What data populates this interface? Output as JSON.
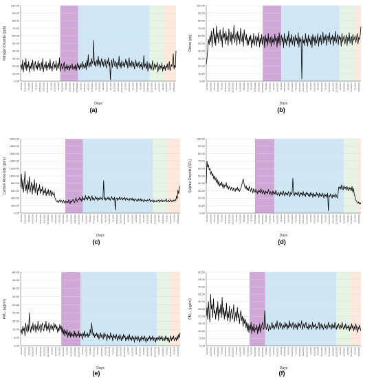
{
  "chart_data": [
    {
      "type": "line",
      "panel_label": "(a)",
      "ylabel": "Nitrogen Dioxide (ppb)",
      "xlabel": "Days",
      "ylim": [
        0,
        100
      ],
      "yticks": [
        "0.00",
        "10.00",
        "20.00",
        "30.00",
        "40.00",
        "50.00",
        "60.00",
        "70.00",
        "80.00",
        "90.00",
        "100.00"
      ],
      "period_colors": [
        "#d0a8d8",
        "#cfe6f5",
        "#e6f4e6",
        "#fde9dc"
      ],
      "values": [
        18,
        22,
        15,
        28,
        12,
        20,
        25,
        16,
        30,
        14,
        22,
        18,
        26,
        12,
        20,
        17,
        24,
        15,
        28,
        19,
        13,
        22,
        26,
        17,
        21,
        15,
        27,
        18,
        23,
        14,
        20,
        25,
        16,
        30,
        12,
        19,
        22,
        17,
        26,
        14,
        21,
        18,
        24,
        15,
        29,
        17,
        20,
        13,
        23,
        26,
        16,
        22,
        18,
        27,
        14,
        20,
        24,
        17,
        31,
        13,
        19,
        23,
        18,
        16,
        21,
        25,
        13,
        19,
        17,
        22,
        15,
        20,
        18,
        14,
        21,
        17,
        19,
        23,
        15,
        18,
        20,
        16,
        22,
        14,
        19,
        24,
        17,
        21,
        15,
        23,
        18,
        20,
        26,
        16,
        22,
        19,
        17,
        24,
        15,
        28,
        20,
        35,
        18,
        22,
        25,
        19,
        30,
        23,
        27,
        54,
        21,
        26,
        19,
        24,
        28,
        20,
        33,
        22,
        27,
        18,
        25,
        30,
        21,
        26,
        19,
        24,
        29,
        22,
        17,
        27,
        23,
        31,
        20,
        25,
        2,
        21,
        28,
        18,
        24,
        30,
        22,
        19,
        26,
        23,
        16,
        25,
        21,
        33,
        19,
        24,
        17,
        27,
        22,
        20,
        25,
        18,
        23,
        29,
        21,
        26,
        17,
        22,
        31,
        20,
        24,
        18,
        27,
        23,
        19,
        25,
        16,
        21,
        28,
        20,
        24,
        18,
        23,
        26,
        17,
        22,
        19,
        25,
        15,
        21,
        34,
        18,
        23,
        20,
        16,
        26,
        13,
        19,
        24,
        17,
        22,
        15,
        20,
        27,
        14,
        18,
        23,
        16,
        21,
        19,
        25,
        12,
        18,
        22,
        15,
        20,
        17,
        24,
        13,
        19,
        16,
        21,
        14,
        20,
        18,
        23,
        15,
        19,
        26,
        14,
        17,
        22,
        19,
        25,
        36,
        16,
        21,
        18,
        40
      ]
    },
    {
      "type": "line",
      "panel_label": "(b)",
      "ylabel": "Ozone (pp)",
      "xlabel": "Days",
      "ylim": [
        0,
        100
      ],
      "yticks": [
        "0.00",
        "10.00",
        "20.00",
        "30.00",
        "40.00",
        "50.00",
        "60.00",
        "70.00",
        "80.00",
        "90.00",
        "100.00"
      ],
      "period_colors": [
        "#d0a8d8",
        "#cfe6f5",
        "#e6f4e6",
        "#fde9dc"
      ],
      "values": [
        22,
        30,
        42,
        55,
        48,
        60,
        52,
        66,
        45,
        58,
        70,
        50,
        62,
        47,
        73,
        56,
        64,
        50,
        59,
        68,
        53,
        61,
        45,
        71,
        57,
        63,
        49,
        66,
        54,
        60,
        47,
        69,
        58,
        52,
        65,
        48,
        62,
        56,
        74,
        51,
        59,
        64,
        47,
        66,
        55,
        61,
        49,
        70,
        57,
        52,
        63,
        46,
        68,
        58,
        54,
        62,
        47,
        57,
        48,
        59,
        53,
        61,
        44,
        56,
        50,
        63,
        47,
        55,
        60,
        46,
        58,
        52,
        64,
        45,
        57,
        50,
        62,
        48,
        55,
        59,
        44,
        61,
        52,
        57,
        47,
        63,
        50,
        54,
        58,
        46,
        60,
        51,
        56,
        48,
        62,
        53,
        57,
        45,
        59,
        50,
        64,
        47,
        55,
        61,
        52,
        58,
        44,
        63,
        50,
        56,
        47,
        60,
        53,
        66,
        45,
        57,
        51,
        62,
        48,
        55,
        59,
        46,
        61,
        53,
        57,
        49,
        64,
        45,
        58,
        52,
        56,
        3,
        60,
        50,
        55,
        47,
        63,
        51,
        57,
        46,
        61,
        52,
        56,
        48,
        59,
        44,
        62,
        53,
        58,
        47,
        60,
        50,
        55,
        63,
        46,
        58,
        52,
        61,
        48,
        56,
        65,
        50,
        59,
        54,
        62,
        47,
        57,
        60,
        52,
        64,
        49,
        58,
        55,
        61,
        47,
        59,
        53,
        66,
        50,
        57,
        62,
        48,
        60,
        55,
        58,
        46,
        63,
        52,
        57,
        60,
        49,
        55,
        61,
        47,
        58,
        53,
        64,
        50,
        57,
        59,
        48,
        62,
        54,
        56,
        60,
        51,
        57,
        63,
        49,
        58,
        55,
        61,
        72
      ]
    },
    {
      "type": "line",
      "panel_label": "(c)",
      "ylabel": "Carbon Monoxide (ppm)",
      "xlabel": "Days",
      "ylim": [
        0,
        2000
      ],
      "yticks": [
        "0.00",
        "200.00",
        "400.00",
        "600.00",
        "800.00",
        "1000.00",
        "1200.00",
        "1400.00",
        "1600.00",
        "1800.00",
        "2000.00"
      ],
      "period_colors": [
        "#d0a8d8",
        "#cfe6f5",
        "#e6f4e6",
        "#fde9dc"
      ],
      "values": [
        700,
        1050,
        650,
        900,
        560,
        820,
        1120,
        600,
        760,
        520,
        880,
        640,
        980,
        560,
        700,
        830,
        500,
        760,
        620,
        900,
        540,
        720,
        810,
        480,
        680,
        600,
        770,
        520,
        650,
        590,
        720,
        480,
        610,
        540,
        680,
        460,
        580,
        520,
        640,
        470,
        560,
        610,
        450,
        590,
        520,
        480,
        560,
        420,
        360,
        320,
        300,
        340,
        280,
        320,
        360,
        290,
        340,
        310,
        270,
        350,
        300,
        260,
        330,
        290,
        310,
        280,
        360,
        300,
        250,
        330,
        290,
        340,
        370,
        310,
        280,
        350,
        410,
        330,
        300,
        380,
        360,
        420,
        340,
        390,
        310,
        450,
        360,
        400,
        340,
        480,
        380,
        420,
        350,
        460,
        390,
        430,
        330,
        400,
        470,
        360,
        410,
        340,
        390,
        450,
        370,
        420,
        330,
        400,
        360,
        440,
        380,
        410,
        350,
        390,
        870,
        360,
        420,
        340,
        400,
        380,
        430,
        360,
        410,
        340,
        390,
        450,
        370,
        400,
        350,
        430,
        80,
        380,
        410,
        340,
        400,
        370,
        440,
        360,
        390,
        420,
        350,
        400,
        370,
        430,
        340,
        390,
        410,
        360,
        380,
        330,
        400,
        370,
        350,
        410,
        340,
        380,
        320,
        390,
        360,
        340,
        370,
        310,
        380,
        350,
        330,
        390,
        320,
        360,
        340,
        300,
        370,
        330,
        350,
        310,
        360,
        320,
        340,
        380,
        300,
        350,
        330,
        310,
        360,
        290,
        340,
        320,
        300,
        350,
        310,
        330,
        360,
        290,
        340,
        320,
        370,
        300,
        330,
        350,
        310,
        340,
        380,
        300,
        320,
        350,
        300,
        330,
        360,
        310,
        340,
        300,
        350,
        320,
        360,
        340,
        460,
        380,
        620,
        520,
        680,
        720
      ]
    },
    {
      "type": "line",
      "panel_label": "(d)",
      "ylabel": "Sulphur Dioxide (SO₂)",
      "xlabel": "Days",
      "ylim": [
        0,
        100
      ],
      "yticks": [
        "0.00",
        "10.00",
        "20.00",
        "30.00",
        "40.00",
        "50.00",
        "60.00",
        "70.00",
        "80.00",
        "90.00",
        "100.00"
      ],
      "period_colors": [
        "#d0a8d8",
        "#cfe6f5",
        "#e6f4e6",
        "#fde9dc"
      ],
      "values": [
        40,
        70,
        62,
        65,
        58,
        60,
        52,
        56,
        50,
        53,
        46,
        50,
        44,
        48,
        41,
        45,
        38,
        43,
        36,
        40,
        37,
        42,
        35,
        39,
        33,
        38,
        36,
        41,
        34,
        37,
        32,
        36,
        34,
        31,
        35,
        33,
        30,
        34,
        32,
        29,
        33,
        31,
        35,
        30,
        33,
        29,
        32,
        34,
        38,
        42,
        46,
        40,
        35,
        33,
        37,
        31,
        34,
        30,
        36,
        32,
        29,
        34,
        31,
        27,
        33,
        30,
        28,
        32,
        29,
        26,
        31,
        28,
        30,
        27,
        33,
        29,
        26,
        31,
        28,
        25,
        30,
        27,
        29,
        26,
        32,
        28,
        25,
        29,
        27,
        24,
        30,
        26,
        28,
        25,
        31,
        27,
        24,
        28,
        26,
        23,
        29,
        25,
        27,
        24,
        30,
        26,
        23,
        28,
        25,
        27,
        24,
        29,
        26,
        22,
        28,
        25,
        27,
        47,
        26,
        23,
        28,
        25,
        27,
        24,
        29,
        26,
        22,
        28,
        25,
        27,
        23,
        29,
        24,
        26,
        22,
        28,
        25,
        27,
        23,
        26,
        22,
        28,
        24,
        26,
        21,
        27,
        23,
        25,
        22,
        28,
        24,
        26,
        21,
        27,
        23,
        25,
        22,
        27,
        24,
        20,
        26,
        23,
        25,
        21,
        27,
        3,
        24,
        22,
        26,
        23,
        20,
        25,
        22,
        24,
        21,
        26,
        23,
        20,
        25,
        35,
        33,
        36,
        32,
        38,
        34,
        31,
        37,
        33,
        35,
        31,
        36,
        33,
        30,
        35,
        32,
        34,
        30,
        36,
        28,
        33,
        25,
        22,
        18,
        16,
        14,
        13,
        15,
        12,
        14,
        12
      ]
    },
    {
      "type": "line",
      "panel_label": "(e)",
      "ylabel": "PM₁₀ (µg/m³)",
      "xlabel": "Days",
      "ylim": [
        0,
        45
      ],
      "yticks": [
        "0.00",
        "5.00",
        "10.00",
        "15.00",
        "20.00",
        "25.00",
        "30.00",
        "35.00",
        "40.00",
        "45.00"
      ],
      "period_colors": [
        "#d0a8d8",
        "#cfe6f5",
        "#e6f4e6",
        "#fde9dc"
      ],
      "values": [
        8,
        10,
        7,
        12,
        9,
        11,
        6,
        14,
        10,
        8,
        13,
        9,
        20,
        11,
        8,
        12,
        10,
        14,
        9,
        11,
        13,
        8,
        12,
        10,
        15,
        9,
        11,
        13,
        8,
        12,
        14,
        10,
        9,
        13,
        11,
        15,
        9,
        12,
        10,
        14,
        8,
        11,
        13,
        10,
        12,
        9,
        14,
        11,
        13,
        10,
        12,
        8,
        11,
        9,
        13,
        10,
        12,
        8,
        11,
        7,
        10,
        6,
        9,
        7,
        10,
        5,
        8,
        6,
        9,
        5,
        8,
        6,
        7,
        5,
        9,
        6,
        8,
        5,
        7,
        6,
        9,
        5,
        8,
        6,
        7,
        4,
        8,
        6,
        9,
        5,
        7,
        6,
        8,
        5,
        7,
        6,
        10,
        7,
        14,
        9,
        6,
        8,
        5,
        7,
        6,
        8,
        5,
        7,
        4,
        6,
        8,
        5,
        7,
        6,
        4,
        8,
        5,
        7,
        6,
        3,
        7,
        5,
        6,
        4,
        8,
        5,
        6,
        3,
        7,
        5,
        6,
        4,
        7,
        5,
        3,
        6,
        4,
        7,
        5,
        3,
        6,
        4,
        7,
        5,
        6,
        3,
        5,
        4,
        6,
        3,
        7,
        4,
        5,
        3,
        6,
        4,
        5,
        2,
        6,
        4,
        5,
        3,
        6,
        4,
        2,
        5,
        3,
        6,
        4,
        5,
        3,
        6,
        4,
        2,
        5,
        3,
        5,
        4,
        6,
        3,
        5,
        4,
        6,
        3,
        5,
        4,
        2,
        5,
        3,
        5,
        4,
        6,
        3,
        5,
        4,
        6,
        3,
        4,
        5,
        3,
        6,
        4,
        5,
        3,
        5,
        2,
        4,
        6,
        3,
        5,
        4,
        6,
        3,
        4,
        5,
        3,
        6,
        4,
        7,
        5,
        8
      ]
    },
    {
      "type": "line",
      "panel_label": "(f)",
      "ylabel": "PM₂.₅ (µg/m³)",
      "xlabel": "Days",
      "ylim": [
        0,
        50
      ],
      "yticks": [
        "0.00",
        "5.00",
        "10.00",
        "15.00",
        "20.00",
        "25.00",
        "30.00",
        "35.00",
        "40.00",
        "45.00",
        "50.00"
      ],
      "period_colors": [
        "#d0a8d8",
        "#cfe6f5",
        "#e6f4e6",
        "#fde9dc"
      ],
      "values": [
        20,
        26,
        18,
        30,
        22,
        16,
        35,
        25,
        28,
        19,
        32,
        22,
        24,
        18,
        26,
        21,
        30,
        17,
        25,
        22,
        28,
        19,
        33,
        21,
        26,
        18,
        24,
        20,
        29,
        17,
        23,
        19,
        27,
        16,
        22,
        25,
        18,
        21,
        28,
        16,
        20,
        23,
        17,
        26,
        19,
        22,
        15,
        21,
        24,
        17,
        20,
        13,
        19,
        15,
        18,
        12,
        16,
        10,
        15,
        9,
        14,
        11,
        16,
        8,
        13,
        10,
        15,
        9,
        12,
        11,
        14,
        8,
        13,
        10,
        15,
        9,
        12,
        14,
        16,
        11,
        12,
        24,
        14,
        11,
        13,
        15,
        10,
        12,
        14,
        11,
        13,
        16,
        12,
        14,
        11,
        13,
        15,
        12,
        17,
        13,
        11,
        14,
        16,
        12,
        15,
        13,
        11,
        14,
        12,
        16,
        13,
        15,
        11,
        14,
        12,
        17,
        13,
        15,
        12,
        14,
        16,
        11,
        13,
        15,
        12,
        14,
        11,
        16,
        13,
        15,
        12,
        14,
        17,
        11,
        13,
        15,
        12,
        14,
        16,
        12,
        13,
        11,
        15,
        12,
        14,
        13,
        11,
        16,
        12,
        14,
        13,
        15,
        11,
        13,
        12,
        14,
        16,
        11,
        13,
        15,
        12,
        14,
        11,
        13,
        15,
        12,
        14,
        11,
        13,
        16,
        12,
        14,
        13,
        11,
        15,
        12,
        14,
        12,
        16,
        13,
        11,
        14,
        12,
        15,
        13,
        11,
        14,
        12,
        16,
        13,
        11,
        14,
        12,
        15,
        11,
        13,
        12,
        14,
        10,
        13,
        11,
        15,
        12,
        14,
        10,
        13,
        11,
        15,
        12,
        9,
        13,
        11,
        14,
        12,
        10
      ]
    }
  ]
}
